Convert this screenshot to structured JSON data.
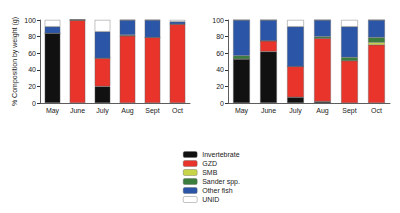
{
  "chart_data": [
    {
      "type": "bar",
      "stacked": true,
      "legend": "bottom",
      "grid": false,
      "y_label": "% Composition by weight (g)",
      "categories": [
        "May",
        "June",
        "July",
        "Aug",
        "Sept",
        "Oct"
      ],
      "ylim": [
        0,
        100
      ],
      "yticks": [
        0,
        20,
        40,
        60,
        80,
        100
      ],
      "series": [
        {
          "name": "Invertebrate",
          "color": "#111111",
          "values": [
            84,
            0,
            20,
            0,
            0,
            0
          ]
        },
        {
          "name": "GZD",
          "color": "#e8342a",
          "values": [
            0,
            100,
            34,
            81,
            79,
            95
          ]
        },
        {
          "name": "SMB",
          "color": "#c9d548",
          "values": [
            0,
            0,
            0,
            0,
            0,
            0
          ]
        },
        {
          "name": "Sander spp.",
          "color": "#3b7d3c",
          "values": [
            0,
            0,
            0,
            1,
            0,
            0
          ]
        },
        {
          "name": "Other fish",
          "color": "#2b55a6",
          "values": [
            8,
            0,
            32,
            18,
            21,
            3
          ]
        },
        {
          "name": "UNID",
          "color": "#ffffff",
          "values": [
            8,
            0,
            14,
            0,
            0,
            2
          ]
        }
      ]
    },
    {
      "type": "bar",
      "stacked": true,
      "grid": false,
      "categories": [
        "May",
        "June",
        "July",
        "Aug",
        "Sept",
        "Oct"
      ],
      "ylim": [
        0,
        100
      ],
      "yticks": [
        0,
        20,
        40,
        60,
        80,
        100
      ],
      "series": [
        {
          "name": "Invertebrate",
          "color": "#111111",
          "values": [
            53,
            62,
            7,
            2,
            0,
            0
          ]
        },
        {
          "name": "GZD",
          "color": "#e8342a",
          "values": [
            0,
            13,
            37,
            76,
            51,
            70
          ]
        },
        {
          "name": "SMB",
          "color": "#c9d548",
          "values": [
            0,
            0,
            0,
            0,
            0,
            3
          ]
        },
        {
          "name": "Sander spp.",
          "color": "#3b7d3c",
          "values": [
            4,
            0,
            0,
            2,
            4,
            6
          ]
        },
        {
          "name": "Other fish",
          "color": "#2b55a6",
          "values": [
            43,
            25,
            48,
            20,
            37,
            21
          ]
        },
        {
          "name": "UNID",
          "color": "#ffffff",
          "values": [
            0,
            0,
            8,
            0,
            8,
            0
          ]
        }
      ]
    }
  ]
}
